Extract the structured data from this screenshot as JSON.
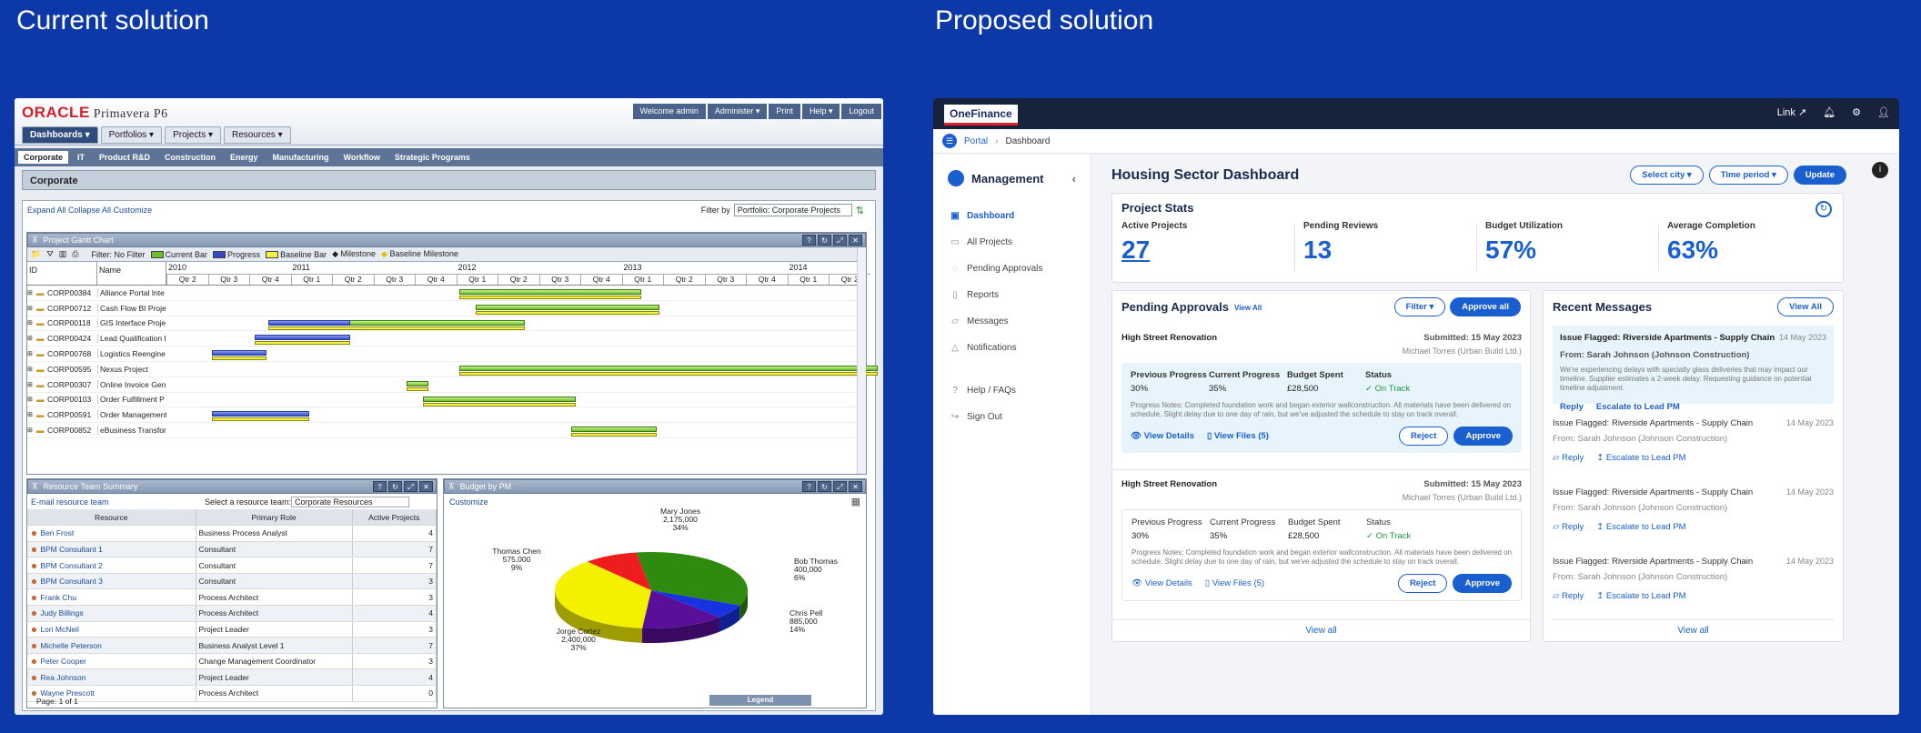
{
  "headings": {
    "left": "Current solution",
    "right": "Proposed solution"
  },
  "oracle": {
    "logo": "ORACLE",
    "product": "Primavera P6",
    "user_bar": [
      "Welcome admin",
      "Administer ▾",
      "Print",
      "Help ▾",
      "Logout"
    ],
    "menu": [
      "Dashboards ▾",
      "Portfolios ▾",
      "Projects ▾",
      "Resources ▾"
    ],
    "subtabs": [
      "Corporate",
      "IT",
      "Product R&D",
      "Construction",
      "Energy",
      "Manufacturing",
      "Workflow",
      "Strategic Programs"
    ],
    "section": "Corporate",
    "links": "Expand All   Collapse All   Customize",
    "filter_label": "Filter by",
    "filter_value": "Portfolio: Corporate Projects",
    "gantt_title": "Project Gantt Chart",
    "gantt_filter": "Filter:  No Filter",
    "legend": [
      "Current Bar",
      "Progress",
      "Baseline Bar",
      "Milestone",
      "Baseline Milestone"
    ],
    "id_label": "ID",
    "name_label": "Name",
    "years": [
      "2010",
      "2011",
      "2012",
      "2013",
      "2014"
    ],
    "quarters": [
      "Qtr 2",
      "Qtr 3",
      "Qtr 4",
      "Qtr 1",
      "Qtr 2",
      "Qtr 3",
      "Qtr 4",
      "Qtr 1",
      "Qtr 2",
      "Qtr 3",
      "Qtr 4",
      "Qtr 1",
      "Qtr 2",
      "Qtr 3",
      "Qtr 4",
      "Qtr 1",
      "Qtr 2"
    ],
    "projects": [
      {
        "id": "CORP00384",
        "name": "Alliance Portal Inte"
      },
      {
        "id": "CORP00712",
        "name": "Cash Flow BI Proje"
      },
      {
        "id": "CORP00118",
        "name": "GIS Interface Proje"
      },
      {
        "id": "CORP00424",
        "name": "Lead Qualification I"
      },
      {
        "id": "CORP00768",
        "name": "Logistics Reengine"
      },
      {
        "id": "CORP00595",
        "name": "Nexus Project"
      },
      {
        "id": "CORP00307",
        "name": "Online Invoice Gen"
      },
      {
        "id": "CORP00103",
        "name": "Order Fulfillment P"
      },
      {
        "id": "CORP00591",
        "name": "Order Management"
      },
      {
        "id": "CORP00852",
        "name": "eBusiness Transfor"
      }
    ],
    "resource_title": "Resource Team Summary",
    "email_team": "E-mail resource team",
    "select_team_label": "Select a resource team:",
    "select_team_value": "Corporate Resources",
    "resource_headers": [
      "Resource",
      "Primary Role",
      "Active Projects"
    ],
    "resources": [
      {
        "name": "Ben Frost",
        "role": "Business Process Analyst",
        "count": "4"
      },
      {
        "name": "BPM Consultant 1",
        "role": "Consultant",
        "count": "7"
      },
      {
        "name": "BPM Consultant 2",
        "role": "Consultant",
        "count": "7"
      },
      {
        "name": "BPM Consultant 3",
        "role": "Consultant",
        "count": "3"
      },
      {
        "name": "Frank Chu",
        "role": "Process Architect",
        "count": "3"
      },
      {
        "name": "Judy Billings",
        "role": "Process Architect",
        "count": "4"
      },
      {
        "name": "Lori McNeil",
        "role": "Project Leader",
        "count": "3"
      },
      {
        "name": "Michelle Peterson",
        "role": "Business Analyst Level 1",
        "count": "7"
      },
      {
        "name": "Peter Cooper",
        "role": "Change Management Coordinator",
        "count": "3"
      },
      {
        "name": "Rea Johnson",
        "role": "Project Leader",
        "count": "4"
      },
      {
        "name": "Wayne Prescott",
        "role": "Process Architect",
        "count": "0"
      }
    ],
    "page_label": "Page: 1 of 1",
    "budget_title": "Budget by PM",
    "customize": "Customize",
    "legend_label": "Legend",
    "pie": [
      {
        "name": "Mary Jones",
        "value": "2,175,000",
        "pct": "34%",
        "color": "#2e8b10"
      },
      {
        "name": "Bob Thomas",
        "value": "400,000",
        "pct": "6%",
        "color": "#1733e0"
      },
      {
        "name": "Chris Pell",
        "value": "885,000",
        "pct": "14%",
        "color": "#5a0f9a"
      },
      {
        "name": "Jorge Cortez",
        "value": "2,400,000",
        "pct": "37%",
        "color": "#f5f000"
      },
      {
        "name": "Thomas Chen",
        "value": "575,000",
        "pct": "9%",
        "color": "#ee1c1c"
      }
    ]
  },
  "onefinance": {
    "logo_a": "One",
    "logo_b": "Finance",
    "top_link": "Link ↗",
    "breadcrumb": [
      "Portal",
      "Dashboard"
    ],
    "side_title": "Management",
    "nav": [
      "Dashboard",
      "All Projects",
      "Pending Approvals",
      "Reports",
      "Messages",
      "Notifications"
    ],
    "nav2": [
      "Help / FAQs",
      "Sign Out"
    ],
    "page_title": "Housing Sector Dashboard",
    "select_city": "Select city ▾",
    "time_period": "Time period ▾",
    "update": "Update",
    "stats_title": "Project Stats",
    "stats": [
      {
        "label": "Active Projects",
        "value": "27"
      },
      {
        "label": "Pending Reviews",
        "value": "13"
      },
      {
        "label": "Budget Utilization",
        "value": "57%"
      },
      {
        "label": "Average Completion",
        "value": "63%"
      }
    ],
    "pending_title": "Pending Approvals",
    "view_all_small": "View All",
    "filter": "Filter ▾",
    "approve_all": "Approve all",
    "approvals": [
      {
        "project": "High Street Renovation",
        "submitted": "Submitted: 15 May 2023",
        "by": "Michael Torres (Urban Build Ltd.)",
        "prev_k": "Previous Progress",
        "prev_v": "30%",
        "cur_k": "Current Progress",
        "cur_v": "35%",
        "bud_k": "Budget Spent",
        "bud_v": "£28,500",
        "st_k": "Status",
        "st_v": "On Track",
        "note": "Progress Notes: Completed foundation work and began exterior wallconstruction. All materials have been delivered on schedule. Slight delay due to one day of rain, but we've adjusted the schedule to stay on track overall.",
        "details": "View Details",
        "files": "View Files (5)",
        "reject": "Reject",
        "approve": "Approve"
      },
      {
        "project": "High Street Renovation",
        "submitted": "Submitted: 15 May 2023",
        "by": "Michael Torres (Urban Build Ltd.)",
        "prev_k": "Previous Progress",
        "prev_v": "30%",
        "cur_k": "Current Progress",
        "cur_v": "35%",
        "bud_k": "Budget Spent",
        "bud_v": "£28,500",
        "st_k": "Status",
        "st_v": "On Track",
        "note": "Progress Notes: Completed foundation work and began exterior wallconstruction. All materials have been delivered on schedule. Slight delay due to one day of rain, but we've adjusted the schedule to stay on track overall.",
        "details": "View Details",
        "files": "View Files (5)",
        "reject": "Reject",
        "approve": "Approve"
      }
    ],
    "view_all_link": "View all",
    "messages_title": "Recent Messages",
    "messages_view_all": "View All",
    "featured": {
      "title": "Issue Flagged: Riverside Apartments - Supply Chain",
      "date": "14 May 2023",
      "from": "From: Sarah Johnson (Johnson Construction)",
      "body": "We're experiencing delays with specialty glass deliveries that may impact our timeline. Supplier estimates a 2-week delay. Requesting guidance on potential timeline adjustment.",
      "reply": "Reply",
      "escalate": "Escalate to Lead PM"
    },
    "messages": [
      {
        "title": "Issue Flagged: Riverside Apartments - Supply Chain",
        "date": "14 May 2023",
        "from": "From: Sarah Johnson (Johnson Construction)",
        "reply": "Reply",
        "escalate": "Escalate to Lead PM"
      },
      {
        "title": "Issue Flagged: Riverside Apartments - Supply Chain",
        "date": "14 May 2023",
        "from": "From: Sarah Johnson (Johnson Construction)",
        "reply": "Reply",
        "escalate": "Escalate to Lead PM"
      },
      {
        "title": "Issue Flagged: Riverside Apartments - Supply Chain",
        "date": "14 May 2023",
        "from": "From: Sarah Johnson (Johnson Construction)",
        "reply": "Reply",
        "escalate": "Escalate to Lead PM"
      }
    ],
    "messages_view_all_link": "View all"
  }
}
